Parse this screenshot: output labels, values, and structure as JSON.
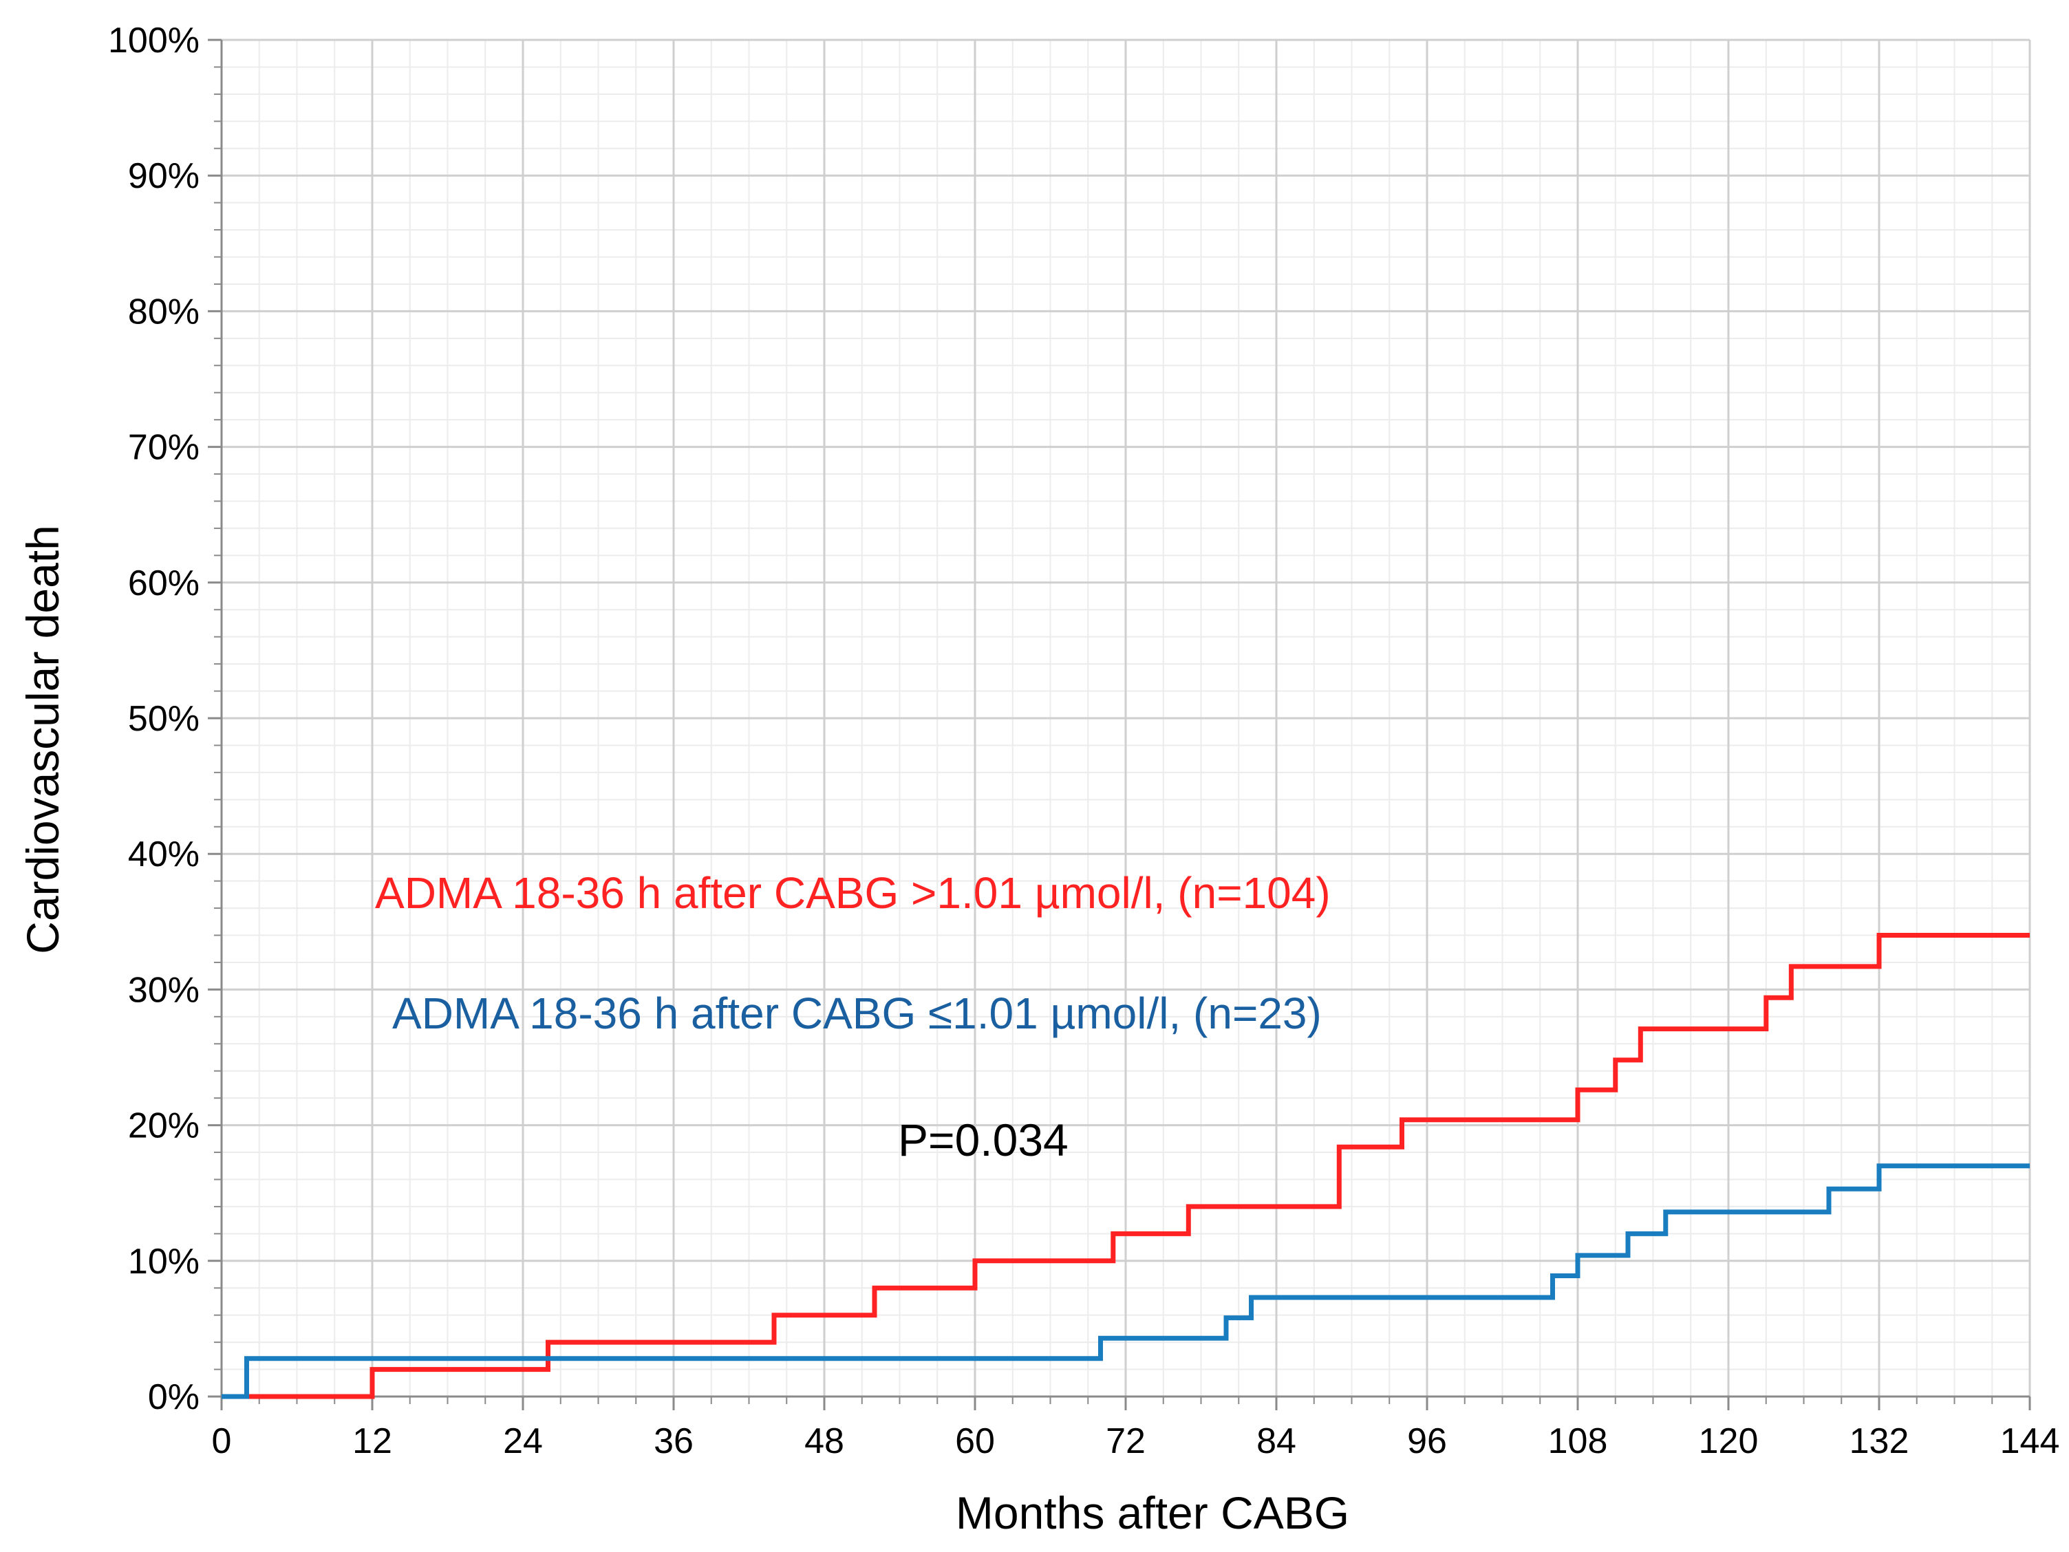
{
  "chart_data": {
    "type": "line",
    "step": true,
    "xlabel": "Months after CABG",
    "ylabel": "Cardiovascular death",
    "xlim": [
      0,
      144
    ],
    "ylim": [
      0,
      100
    ],
    "xticks": [
      0,
      12,
      24,
      36,
      48,
      60,
      72,
      84,
      96,
      108,
      120,
      132,
      144
    ],
    "yticks": [
      0,
      10,
      20,
      30,
      40,
      50,
      60,
      70,
      80,
      90,
      100
    ],
    "ytick_labels": [
      "0%",
      "10%",
      "20%",
      "30%",
      "40%",
      "50%",
      "60%",
      "70%",
      "80%",
      "90%",
      "100%"
    ],
    "grid": true,
    "annotation": "P=0.034",
    "series": [
      {
        "name": "ADMA  18-36 h after CABG >1.01 µmol/l, (n=104)",
        "color": "#ff2222",
        "points": [
          [
            0,
            0
          ],
          [
            12,
            0
          ],
          [
            12,
            2
          ],
          [
            26,
            2
          ],
          [
            26,
            4
          ],
          [
            44,
            4
          ],
          [
            44,
            6
          ],
          [
            52,
            6
          ],
          [
            52,
            8
          ],
          [
            60,
            8
          ],
          [
            60,
            10
          ],
          [
            71,
            10
          ],
          [
            71,
            12
          ],
          [
            77,
            12
          ],
          [
            77,
            14
          ],
          [
            89,
            14
          ],
          [
            89,
            18.4
          ],
          [
            94,
            18.4
          ],
          [
            94,
            20.4
          ],
          [
            108,
            20.4
          ],
          [
            108,
            22.6
          ],
          [
            111,
            22.6
          ],
          [
            111,
            24.8
          ],
          [
            113,
            24.8
          ],
          [
            113,
            27.1
          ],
          [
            123,
            27.1
          ],
          [
            123,
            29.4
          ],
          [
            125,
            29.4
          ],
          [
            125,
            31.7
          ],
          [
            132,
            31.7
          ],
          [
            132,
            34
          ],
          [
            144,
            34
          ]
        ]
      },
      {
        "name": "ADMA  18-36 h after CABG ≤1.01 µmol/l, (n=23)",
        "color": "#1a7dbf",
        "points": [
          [
            0,
            0
          ],
          [
            2,
            0
          ],
          [
            2,
            2.8
          ],
          [
            70,
            2.8
          ],
          [
            70,
            4.3
          ],
          [
            80,
            4.3
          ],
          [
            80,
            5.8
          ],
          [
            82,
            5.8
          ],
          [
            82,
            7.3
          ],
          [
            106,
            7.3
          ],
          [
            106,
            8.9
          ],
          [
            108,
            8.9
          ],
          [
            108,
            10.4
          ],
          [
            112,
            10.4
          ],
          [
            112,
            12
          ],
          [
            115,
            12
          ],
          [
            115,
            13.6
          ],
          [
            128,
            13.6
          ],
          [
            128,
            15.3
          ],
          [
            132,
            15.3
          ],
          [
            132,
            17
          ],
          [
            144,
            17
          ]
        ]
      }
    ]
  }
}
